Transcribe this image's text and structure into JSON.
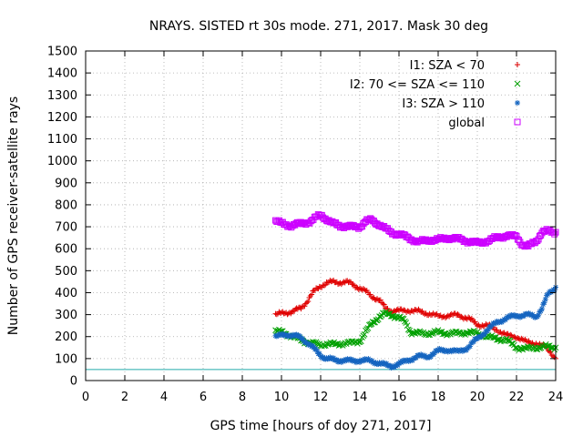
{
  "chart_data": {
    "type": "scatter",
    "title": "NRAYS. SISTED rt 30s mode. 271, 2017. Mask 30 deg",
    "xlabel": "GPS time [hours of doy 271, 2017]",
    "ylabel": "Number of GPS receiver-satellite rays",
    "xlim": [
      0,
      24
    ],
    "ylim": [
      0,
      1500
    ],
    "xticks": [
      0,
      2,
      4,
      6,
      8,
      10,
      12,
      14,
      16,
      18,
      20,
      22,
      24
    ],
    "yticks": [
      0,
      100,
      200,
      300,
      400,
      500,
      600,
      700,
      800,
      900,
      1000,
      1100,
      1200,
      1300,
      1400,
      1500
    ],
    "grid": true,
    "legend_position": "top-right",
    "reference_line": {
      "y": 50,
      "color": "#22aaaa"
    },
    "series": [
      {
        "name": "I1: SZA < 70",
        "marker": "+",
        "color": "#e00000",
        "points": [
          [
            9.7,
            300
          ],
          [
            10.0,
            305
          ],
          [
            10.3,
            310
          ],
          [
            10.6,
            315
          ],
          [
            11.0,
            330
          ],
          [
            11.3,
            360
          ],
          [
            11.6,
            400
          ],
          [
            12.0,
            430
          ],
          [
            12.3,
            445
          ],
          [
            12.6,
            448
          ],
          [
            13.0,
            447
          ],
          [
            13.3,
            448
          ],
          [
            13.6,
            440
          ],
          [
            14.0,
            420
          ],
          [
            14.3,
            405
          ],
          [
            14.6,
            385
          ],
          [
            15.0,
            365
          ],
          [
            15.3,
            330
          ],
          [
            15.6,
            318
          ],
          [
            16.0,
            317
          ],
          [
            16.5,
            320
          ],
          [
            17.0,
            315
          ],
          [
            17.5,
            305
          ],
          [
            18.0,
            292
          ],
          [
            18.5,
            296
          ],
          [
            19.0,
            298
          ],
          [
            19.3,
            290
          ],
          [
            19.6,
            280
          ],
          [
            20.0,
            255
          ],
          [
            20.5,
            250
          ],
          [
            21.0,
            232
          ],
          [
            21.5,
            205
          ],
          [
            22.0,
            200
          ],
          [
            22.5,
            175
          ],
          [
            23.0,
            170
          ],
          [
            23.5,
            150
          ],
          [
            23.8,
            125
          ],
          [
            24.0,
            100
          ]
        ]
      },
      {
        "name": "I2: 70 <= SZA <= 110",
        "marker": "x",
        "color": "#00a000",
        "points": [
          [
            9.7,
            225
          ],
          [
            10.0,
            220
          ],
          [
            10.3,
            210
          ],
          [
            10.6,
            200
          ],
          [
            11.0,
            185
          ],
          [
            11.3,
            175
          ],
          [
            11.6,
            168
          ],
          [
            12.0,
            165
          ],
          [
            12.5,
            165
          ],
          [
            13.0,
            168
          ],
          [
            13.5,
            170
          ],
          [
            14.0,
            180
          ],
          [
            14.3,
            220
          ],
          [
            14.6,
            260
          ],
          [
            15.0,
            290
          ],
          [
            15.3,
            305
          ],
          [
            15.6,
            300
          ],
          [
            16.0,
            285
          ],
          [
            16.3,
            270
          ],
          [
            16.6,
            220
          ],
          [
            17.0,
            215
          ],
          [
            17.5,
            215
          ],
          [
            18.0,
            220
          ],
          [
            18.5,
            215
          ],
          [
            19.0,
            215
          ],
          [
            19.5,
            220
          ],
          [
            20.0,
            215
          ],
          [
            20.5,
            200
          ],
          [
            21.0,
            190
          ],
          [
            21.5,
            185
          ],
          [
            22.0,
            150
          ],
          [
            22.5,
            145
          ],
          [
            23.0,
            150
          ],
          [
            23.5,
            155
          ],
          [
            24.0,
            150
          ]
        ]
      },
      {
        "name": "I3: SZA > 110",
        "marker": "*",
        "color": "#1565c0",
        "points": [
          [
            9.7,
            200
          ],
          [
            10.0,
            205
          ],
          [
            10.3,
            210
          ],
          [
            10.6,
            205
          ],
          [
            11.0,
            195
          ],
          [
            11.3,
            175
          ],
          [
            11.6,
            150
          ],
          [
            12.0,
            115
          ],
          [
            12.3,
            100
          ],
          [
            12.6,
            95
          ],
          [
            13.0,
            92
          ],
          [
            13.5,
            90
          ],
          [
            14.0,
            92
          ],
          [
            14.5,
            90
          ],
          [
            15.0,
            80
          ],
          [
            15.3,
            70
          ],
          [
            15.6,
            65
          ],
          [
            16.0,
            75
          ],
          [
            16.5,
            95
          ],
          [
            17.0,
            110
          ],
          [
            17.5,
            110
          ],
          [
            18.0,
            135
          ],
          [
            18.5,
            140
          ],
          [
            19.0,
            130
          ],
          [
            19.5,
            150
          ],
          [
            20.0,
            190
          ],
          [
            20.5,
            230
          ],
          [
            21.0,
            265
          ],
          [
            21.5,
            285
          ],
          [
            22.0,
            295
          ],
          [
            22.5,
            300
          ],
          [
            23.0,
            290
          ],
          [
            23.3,
            330
          ],
          [
            23.6,
            390
          ],
          [
            24.0,
            425
          ]
        ]
      },
      {
        "name": "global",
        "marker": "square",
        "color": "#cc00ff",
        "points": [
          [
            9.7,
            725
          ],
          [
            10.0,
            715
          ],
          [
            10.5,
            705
          ],
          [
            11.0,
            715
          ],
          [
            11.5,
            725
          ],
          [
            12.0,
            755
          ],
          [
            12.3,
            735
          ],
          [
            12.6,
            715
          ],
          [
            13.0,
            705
          ],
          [
            13.5,
            700
          ],
          [
            14.0,
            700
          ],
          [
            14.3,
            725
          ],
          [
            14.6,
            730
          ],
          [
            15.0,
            710
          ],
          [
            15.3,
            690
          ],
          [
            15.6,
            675
          ],
          [
            16.0,
            665
          ],
          [
            16.5,
            650
          ],
          [
            17.0,
            630
          ],
          [
            17.5,
            640
          ],
          [
            18.0,
            640
          ],
          [
            18.5,
            650
          ],
          [
            19.0,
            645
          ],
          [
            19.5,
            635
          ],
          [
            20.0,
            625
          ],
          [
            20.5,
            635
          ],
          [
            21.0,
            650
          ],
          [
            21.5,
            660
          ],
          [
            22.0,
            655
          ],
          [
            22.3,
            620
          ],
          [
            22.6,
            610
          ],
          [
            23.0,
            635
          ],
          [
            23.3,
            675
          ],
          [
            23.6,
            680
          ],
          [
            24.0,
            675
          ]
        ]
      }
    ]
  }
}
